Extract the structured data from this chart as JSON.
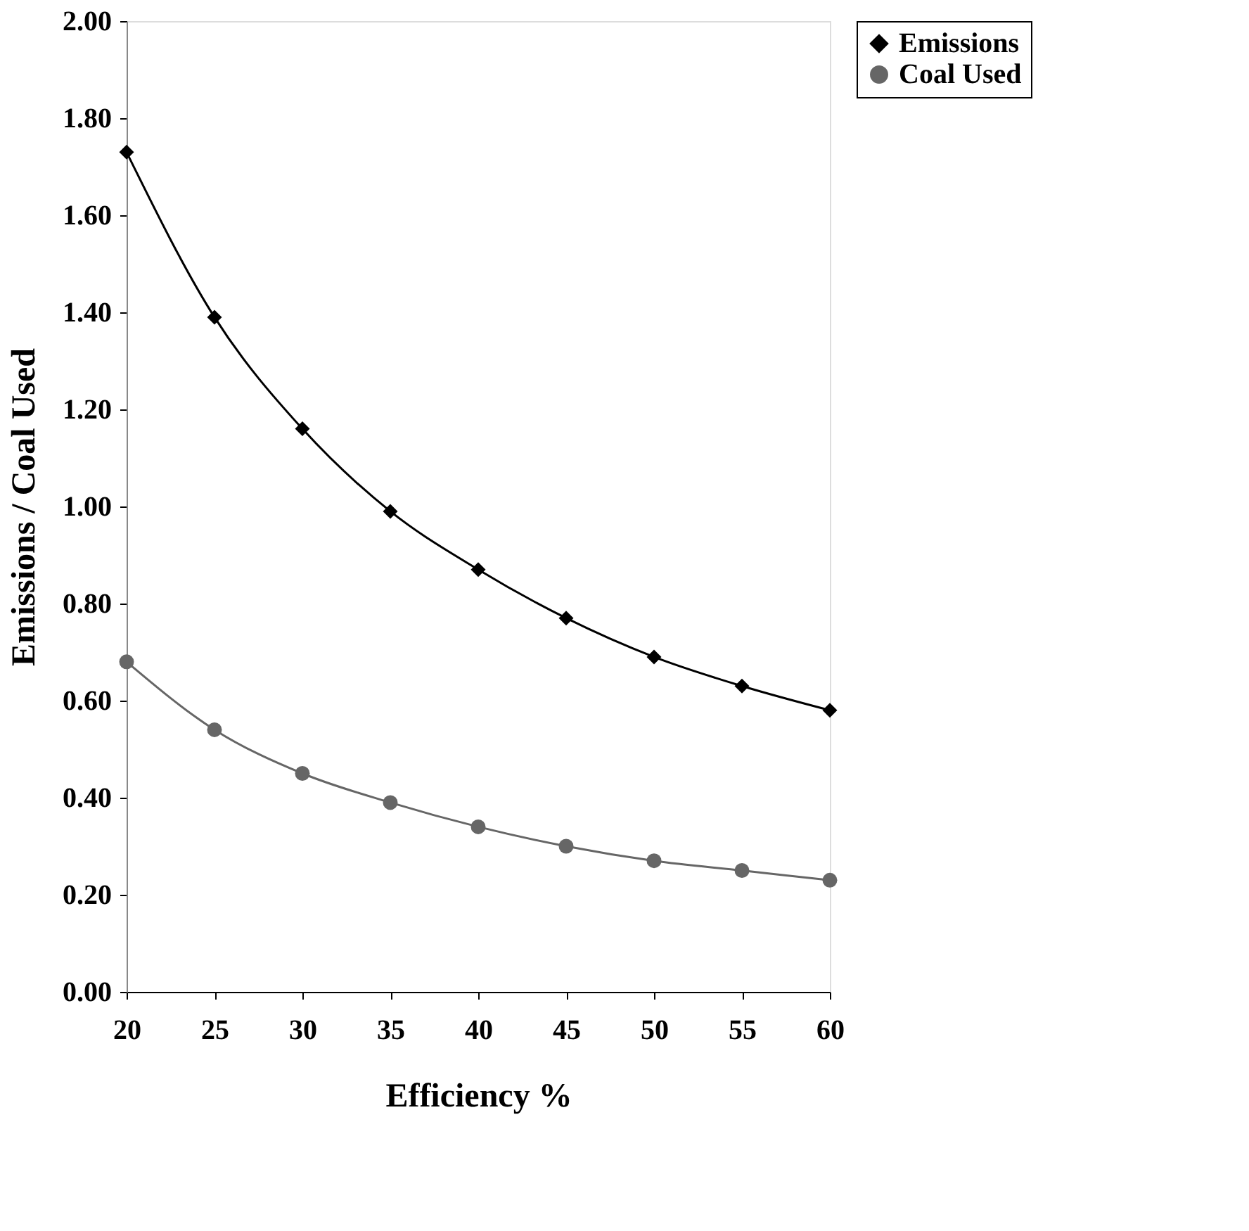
{
  "chart_data": {
    "type": "line",
    "xlabel": "Efficiency %",
    "ylabel": "Emissions / Coal Used",
    "x": [
      20,
      25,
      30,
      35,
      40,
      45,
      50,
      55,
      60
    ],
    "series": [
      {
        "name": "Emissions",
        "color": "#000000",
        "marker": "diamond",
        "values": [
          1.73,
          1.39,
          1.16,
          0.99,
          0.87,
          0.77,
          0.69,
          0.63,
          0.58
        ]
      },
      {
        "name": "Coal Used",
        "color": "#666666",
        "marker": "circle",
        "values": [
          0.68,
          0.54,
          0.45,
          0.39,
          0.34,
          0.3,
          0.27,
          0.25,
          0.23
        ]
      }
    ],
    "xlim": [
      20,
      60
    ],
    "xticks": [
      20,
      25,
      30,
      35,
      40,
      45,
      50,
      55,
      60
    ],
    "ylim": [
      0,
      2
    ],
    "yticks": [
      {
        "value": 0,
        "label": "0.00"
      },
      {
        "value": 0.2,
        "label": "0.20"
      },
      {
        "value": 0.4,
        "label": "0.40"
      },
      {
        "value": 0.6,
        "label": "0.60"
      },
      {
        "value": 0.8,
        "label": "0.80"
      },
      {
        "value": 1,
        "label": "1.00"
      },
      {
        "value": 1.2,
        "label": "1.20"
      },
      {
        "value": 1.4,
        "label": "1.40"
      },
      {
        "value": 1.6,
        "label": "1.60"
      },
      {
        "value": 1.8,
        "label": "1.80"
      },
      {
        "value": 2,
        "label": "2.00"
      }
    ],
    "grid": false,
    "legend": "right",
    "line_style": "solid"
  }
}
